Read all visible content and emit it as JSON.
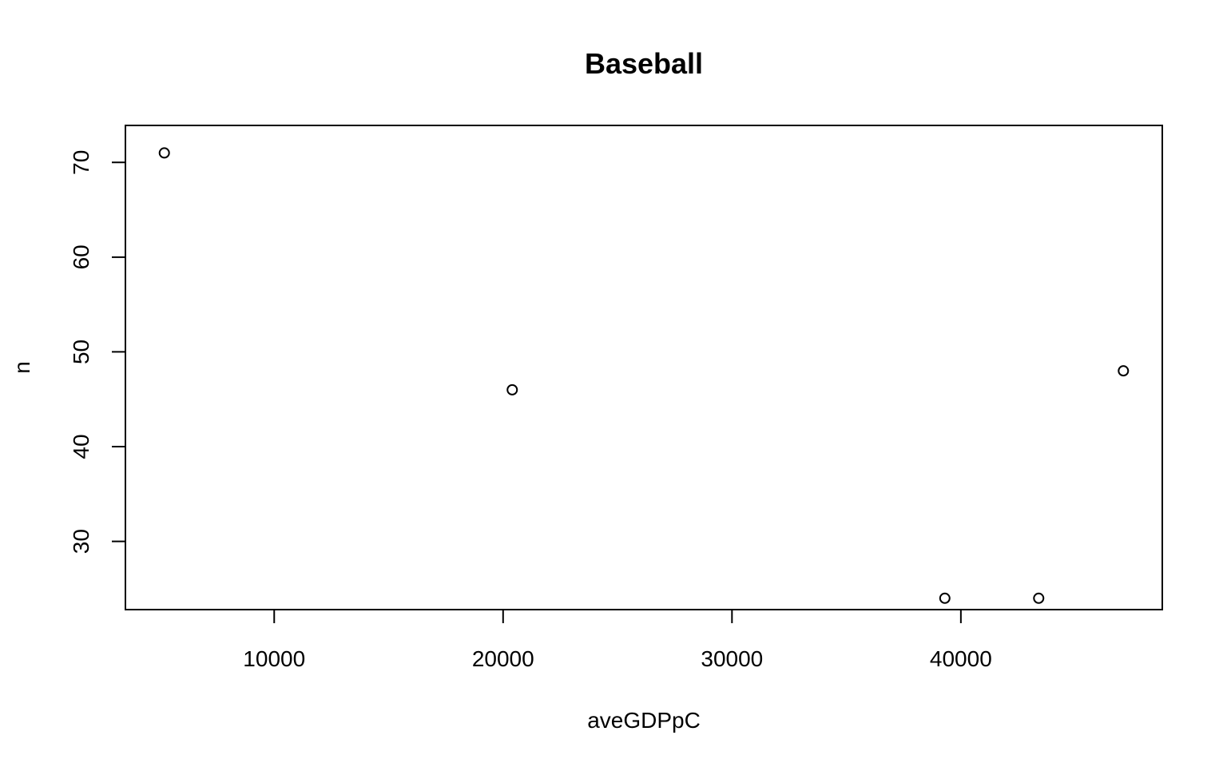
{
  "chart_data": {
    "type": "scatter",
    "title": "Baseball",
    "xlabel": "aveGDPpC",
    "ylabel": "n",
    "x": [
      5200,
      20400,
      39300,
      43400,
      47100
    ],
    "y": [
      71,
      46,
      24,
      24,
      48
    ],
    "xlim": [
      3500,
      48800
    ],
    "ylim": [
      22.8,
      73.9
    ],
    "xticks": [
      10000,
      20000,
      30000,
      40000
    ],
    "yticks": [
      30,
      40,
      50,
      60,
      70
    ],
    "grid": false,
    "legend": "none",
    "marker": "open-circle",
    "color": "#000000"
  }
}
